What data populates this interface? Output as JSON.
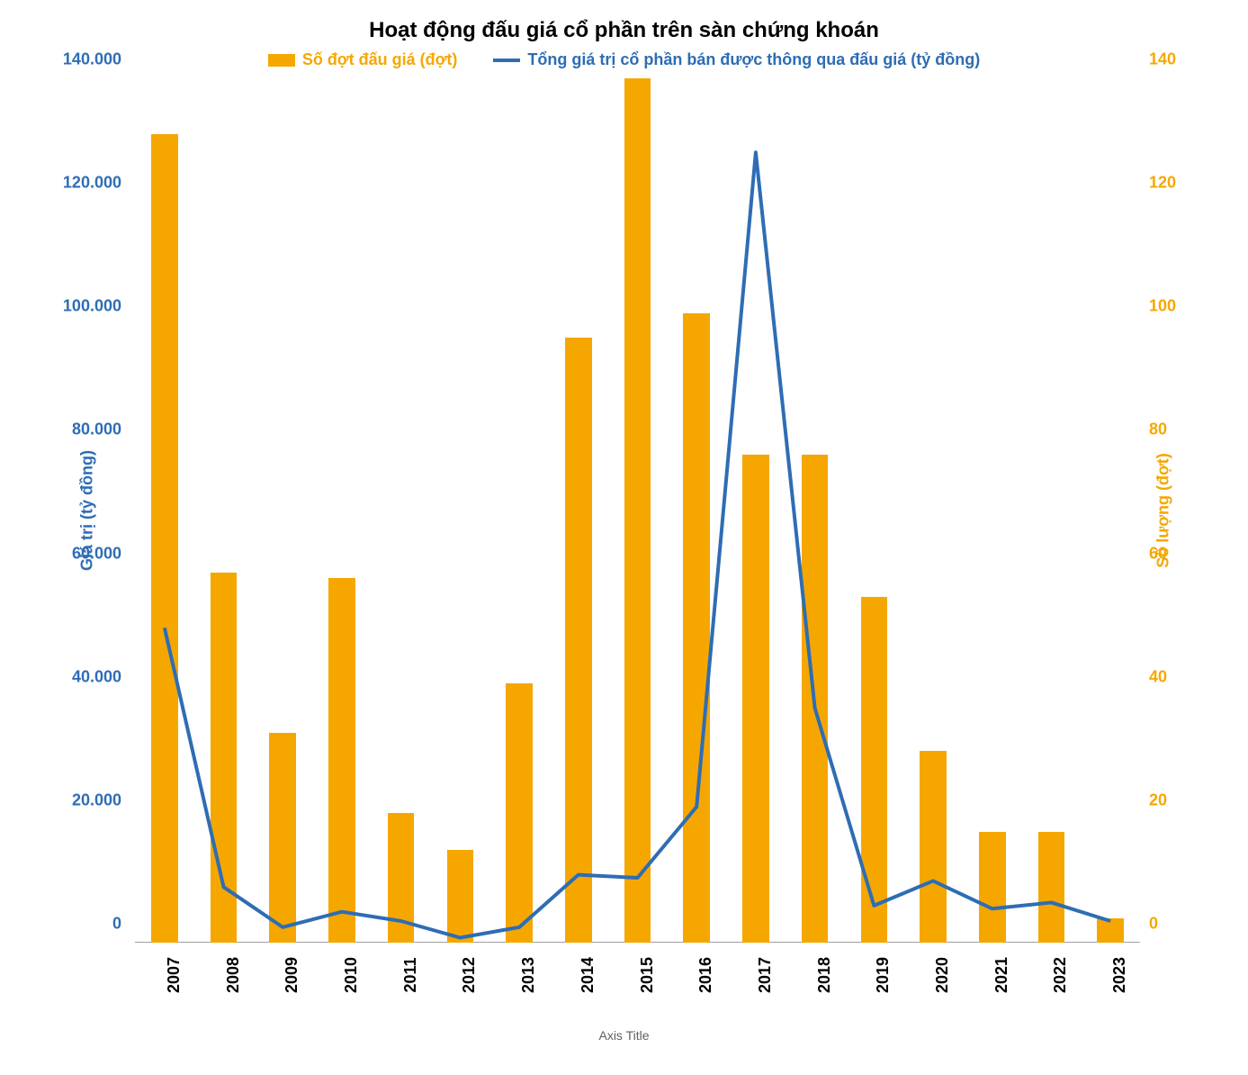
{
  "chart": {
    "type": "bar+line",
    "title": "Hoạt động đấu giá cổ phần trên sàn chứng khoán",
    "title_fontsize": 24,
    "title_color": "#000000",
    "legend": {
      "bar": {
        "label": "Số đợt đấu giá (đợt)",
        "color": "#f5a700",
        "fontsize": 18
      },
      "line": {
        "label": "Tổng giá trị cổ phần bán được thông qua đấu giá (tỷ đồng)",
        "color": "#2e6db4",
        "fontsize": 18
      }
    },
    "x_axis": {
      "categories": [
        "2007",
        "2008",
        "2009",
        "2010",
        "2011",
        "2012",
        "2013",
        "2014",
        "2015",
        "2016",
        "2017",
        "2018",
        "2019",
        "2020",
        "2021",
        "2022",
        "2023"
      ],
      "tick_fontsize": 18,
      "title": "Axis Title",
      "title_fontsize": 14,
      "title_color": "#606060"
    },
    "y_axis_left": {
      "label": "Giá trị (tỷ đồng)",
      "label_color": "#2e6db4",
      "label_fontsize": 18,
      "min": 0,
      "max": 140000,
      "tick_step": 20000,
      "tick_labels": [
        "0",
        "20.000",
        "40.000",
        "60.000",
        "80.000",
        "100.000",
        "120.000",
        "140.000"
      ],
      "tick_color": "#2e6db4",
      "tick_fontsize": 18
    },
    "y_axis_right": {
      "label": "Số lượng (đợt)",
      "label_color": "#f5a700",
      "label_fontsize": 18,
      "min": 0,
      "max": 140,
      "tick_step": 20,
      "tick_labels": [
        "0",
        "20",
        "40",
        "60",
        "80",
        "100",
        "120",
        "140"
      ],
      "tick_color": "#f5a700",
      "tick_fontsize": 18
    },
    "series_bars": {
      "name": "Số đợt đấu giá (đợt)",
      "axis": "right",
      "color": "#f5a700",
      "bar_width": 0.45,
      "values": [
        131,
        60,
        34,
        59,
        21,
        15,
        42,
        98,
        140,
        102,
        79,
        79,
        56,
        31,
        18,
        18,
        4
      ]
    },
    "series_line": {
      "name": "Tổng giá trị cổ phần bán được thông qua đấu giá (tỷ đồng)",
      "axis": "left",
      "color": "#2e6db4",
      "line_width": 4,
      "values": [
        51000,
        9000,
        2500,
        5000,
        3500,
        800,
        2500,
        11000,
        10500,
        22000,
        128000,
        38000,
        6000,
        10000,
        5500,
        6500,
        3500
      ]
    },
    "background_color": "#ffffff"
  }
}
